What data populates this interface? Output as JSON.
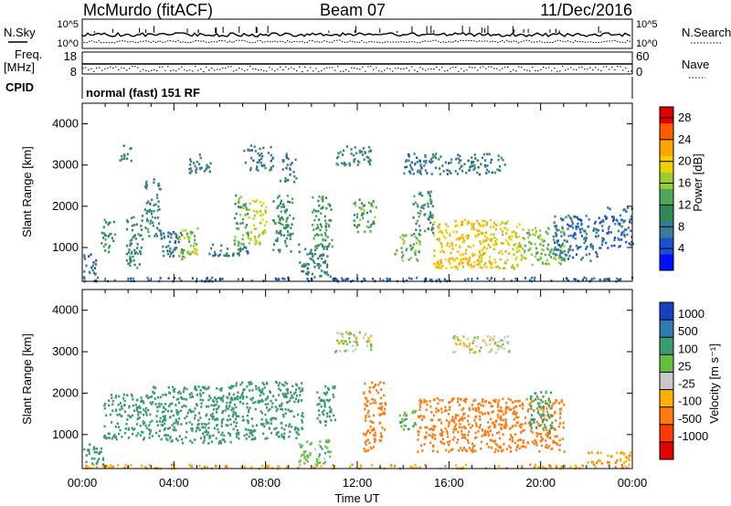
{
  "header": {
    "station": "McMurdo (fitACF)",
    "beam": "Beam 07",
    "date": "11/Dec/2016"
  },
  "summary_panels": {
    "nsky_label": "N.Sky",
    "nsearch_label": "N.Search",
    "nsky_ticks": [
      "10^5",
      "10^0"
    ],
    "nsearch_ticks": [
      "10^5",
      "10^0"
    ],
    "freq_label_line1": "Freq.",
    "freq_label_line2": "[MHz]",
    "freq_ticks": [
      "18",
      "8"
    ],
    "nave_label": "Nave",
    "nave_ticks": [
      "60",
      "0"
    ],
    "cpid_label": "CPID",
    "cpid_value": "normal (fast) 151 RF"
  },
  "chart_data": [
    {
      "type": "heatmap",
      "panel": "power",
      "title": "",
      "ylabel": "Slant Range [km]",
      "xlabel": "Time UT",
      "xlim": [
        0,
        24
      ],
      "ylim": [
        180,
        4500
      ],
      "yticks": [
        "1000",
        "2000",
        "3000",
        "4000"
      ],
      "colorbar": {
        "label": "Power [dB]",
        "range": [
          0,
          30
        ],
        "ticks": [
          "4",
          "8",
          "12",
          "16",
          "20",
          "24",
          "28"
        ],
        "colors": [
          "#0010ff",
          "#1a4fd0",
          "#3a7a9a",
          "#2e8b57",
          "#4fa85a",
          "#9acd32",
          "#f0d000",
          "#ffa500",
          "#ff5a00",
          "#e00000"
        ]
      },
      "echo_regions": [
        {
          "t0": 0.0,
          "t1": 24.0,
          "r0": 200,
          "r1": 300,
          "value": 6
        },
        {
          "t0": 0.0,
          "t1": 0.6,
          "r0": 300,
          "r1": 900,
          "value": 7
        },
        {
          "t0": 0.8,
          "t1": 1.4,
          "r0": 900,
          "r1": 1700,
          "value": 11
        },
        {
          "t0": 1.9,
          "t1": 2.6,
          "r0": 500,
          "r1": 1800,
          "value": 10
        },
        {
          "t0": 1.6,
          "t1": 2.1,
          "r0": 3100,
          "r1": 3500,
          "value": 9
        },
        {
          "t0": 2.7,
          "t1": 3.4,
          "r0": 1300,
          "r1": 2700,
          "value": 10
        },
        {
          "t0": 3.3,
          "t1": 4.4,
          "r0": 800,
          "r1": 1400,
          "value": 8
        },
        {
          "t0": 4.2,
          "t1": 5.0,
          "r0": 700,
          "r1": 1500,
          "value": 17
        },
        {
          "t0": 4.6,
          "t1": 5.6,
          "r0": 2800,
          "r1": 3300,
          "value": 9
        },
        {
          "t0": 5.5,
          "t1": 7.2,
          "r0": 800,
          "r1": 1100,
          "value": 8
        },
        {
          "t0": 6.6,
          "t1": 7.2,
          "r0": 1000,
          "r1": 2300,
          "value": 13
        },
        {
          "t0": 7.2,
          "t1": 8.0,
          "r0": 1100,
          "r1": 2200,
          "value": 18
        },
        {
          "t0": 7.0,
          "t1": 8.3,
          "r0": 2900,
          "r1": 3500,
          "value": 8
        },
        {
          "t0": 8.3,
          "t1": 9.2,
          "r0": 900,
          "r1": 2300,
          "value": 11
        },
        {
          "t0": 8.6,
          "t1": 9.3,
          "r0": 2600,
          "r1": 3300,
          "value": 8
        },
        {
          "t0": 9.4,
          "t1": 10.8,
          "r0": 300,
          "r1": 1100,
          "value": 9
        },
        {
          "t0": 10.0,
          "t1": 10.9,
          "r0": 1000,
          "r1": 2300,
          "value": 12
        },
        {
          "t0": 11.0,
          "t1": 12.6,
          "r0": 3000,
          "r1": 3500,
          "value": 10
        },
        {
          "t0": 11.8,
          "t1": 12.8,
          "r0": 1400,
          "r1": 2200,
          "value": 13
        },
        {
          "t0": 13.6,
          "t1": 14.7,
          "r0": 700,
          "r1": 1400,
          "value": 15
        },
        {
          "t0": 14.4,
          "t1": 15.3,
          "r0": 1300,
          "r1": 2400,
          "value": 11
        },
        {
          "t0": 15.3,
          "t1": 17.3,
          "r0": 500,
          "r1": 1700,
          "value": 21
        },
        {
          "t0": 17.3,
          "t1": 19.2,
          "r0": 500,
          "r1": 1700,
          "value": 19
        },
        {
          "t0": 19.2,
          "t1": 21.0,
          "r0": 600,
          "r1": 1500,
          "value": 15
        },
        {
          "t0": 14.0,
          "t1": 18.5,
          "r0": 2800,
          "r1": 3300,
          "value": 8
        },
        {
          "t0": 20.5,
          "t1": 22.5,
          "r0": 700,
          "r1": 1800,
          "value": 7
        },
        {
          "t0": 22.5,
          "t1": 24.0,
          "r0": 1000,
          "r1": 2000,
          "value": 6
        }
      ]
    },
    {
      "type": "heatmap",
      "panel": "velocity",
      "title": "",
      "ylabel": "Slant Range [km]",
      "xlabel": "Time UT",
      "xlim": [
        0,
        24
      ],
      "ylim": [
        180,
        4500
      ],
      "yticks": [
        "1000",
        "2000",
        "3000",
        "4000"
      ],
      "xticks": [
        "00:00",
        "04:00",
        "08:00",
        "12:00",
        "16:00",
        "20:00",
        "00:00"
      ],
      "colorbar": {
        "label": "Velocity [m s⁻¹]",
        "ticks": [
          "1000",
          "500",
          "100",
          "25",
          "-25",
          "-100",
          "-500",
          "-1000"
        ],
        "colors": [
          "#1a3fc0",
          "#2e7cb0",
          "#3a9b70",
          "#66c040",
          "#c8c8c8",
          "#ffb000",
          "#ff7a10",
          "#ff3a00",
          "#e00000"
        ]
      },
      "echo_regions": [
        {
          "t0": 0.0,
          "t1": 24.0,
          "r0": 200,
          "r1": 300,
          "value": -80
        },
        {
          "t0": 0.0,
          "t1": 0.9,
          "r0": 300,
          "r1": 800,
          "value": 150
        },
        {
          "t0": 0.9,
          "t1": 3.0,
          "r0": 900,
          "r1": 2000,
          "value": 300
        },
        {
          "t0": 3.0,
          "t1": 6.6,
          "r0": 800,
          "r1": 2200,
          "value": 250
        },
        {
          "t0": 6.6,
          "t1": 9.6,
          "r0": 900,
          "r1": 2300,
          "value": 220
        },
        {
          "t0": 9.4,
          "t1": 10.8,
          "r0": 300,
          "r1": 900,
          "value": 60
        },
        {
          "t0": 10.2,
          "t1": 11.0,
          "r0": 1200,
          "r1": 2200,
          "value": 200
        },
        {
          "t0": 11.0,
          "t1": 12.6,
          "r0": 3000,
          "r1": 3500,
          "value": 0
        },
        {
          "t0": 12.2,
          "t1": 13.2,
          "r0": 600,
          "r1": 2300,
          "value": -180
        },
        {
          "t0": 13.8,
          "t1": 14.6,
          "r0": 1100,
          "r1": 1600,
          "value": 90
        },
        {
          "t0": 14.6,
          "t1": 21.0,
          "r0": 600,
          "r1": 1900,
          "value": -260
        },
        {
          "t0": 16.0,
          "t1": 18.6,
          "r0": 3000,
          "r1": 3400,
          "value": 0
        },
        {
          "t0": 19.5,
          "t1": 20.5,
          "r0": 1100,
          "r1": 2100,
          "value": 130
        },
        {
          "t0": 22.0,
          "t1": 24.0,
          "r0": 300,
          "r1": 600,
          "value": -90
        }
      ]
    }
  ]
}
